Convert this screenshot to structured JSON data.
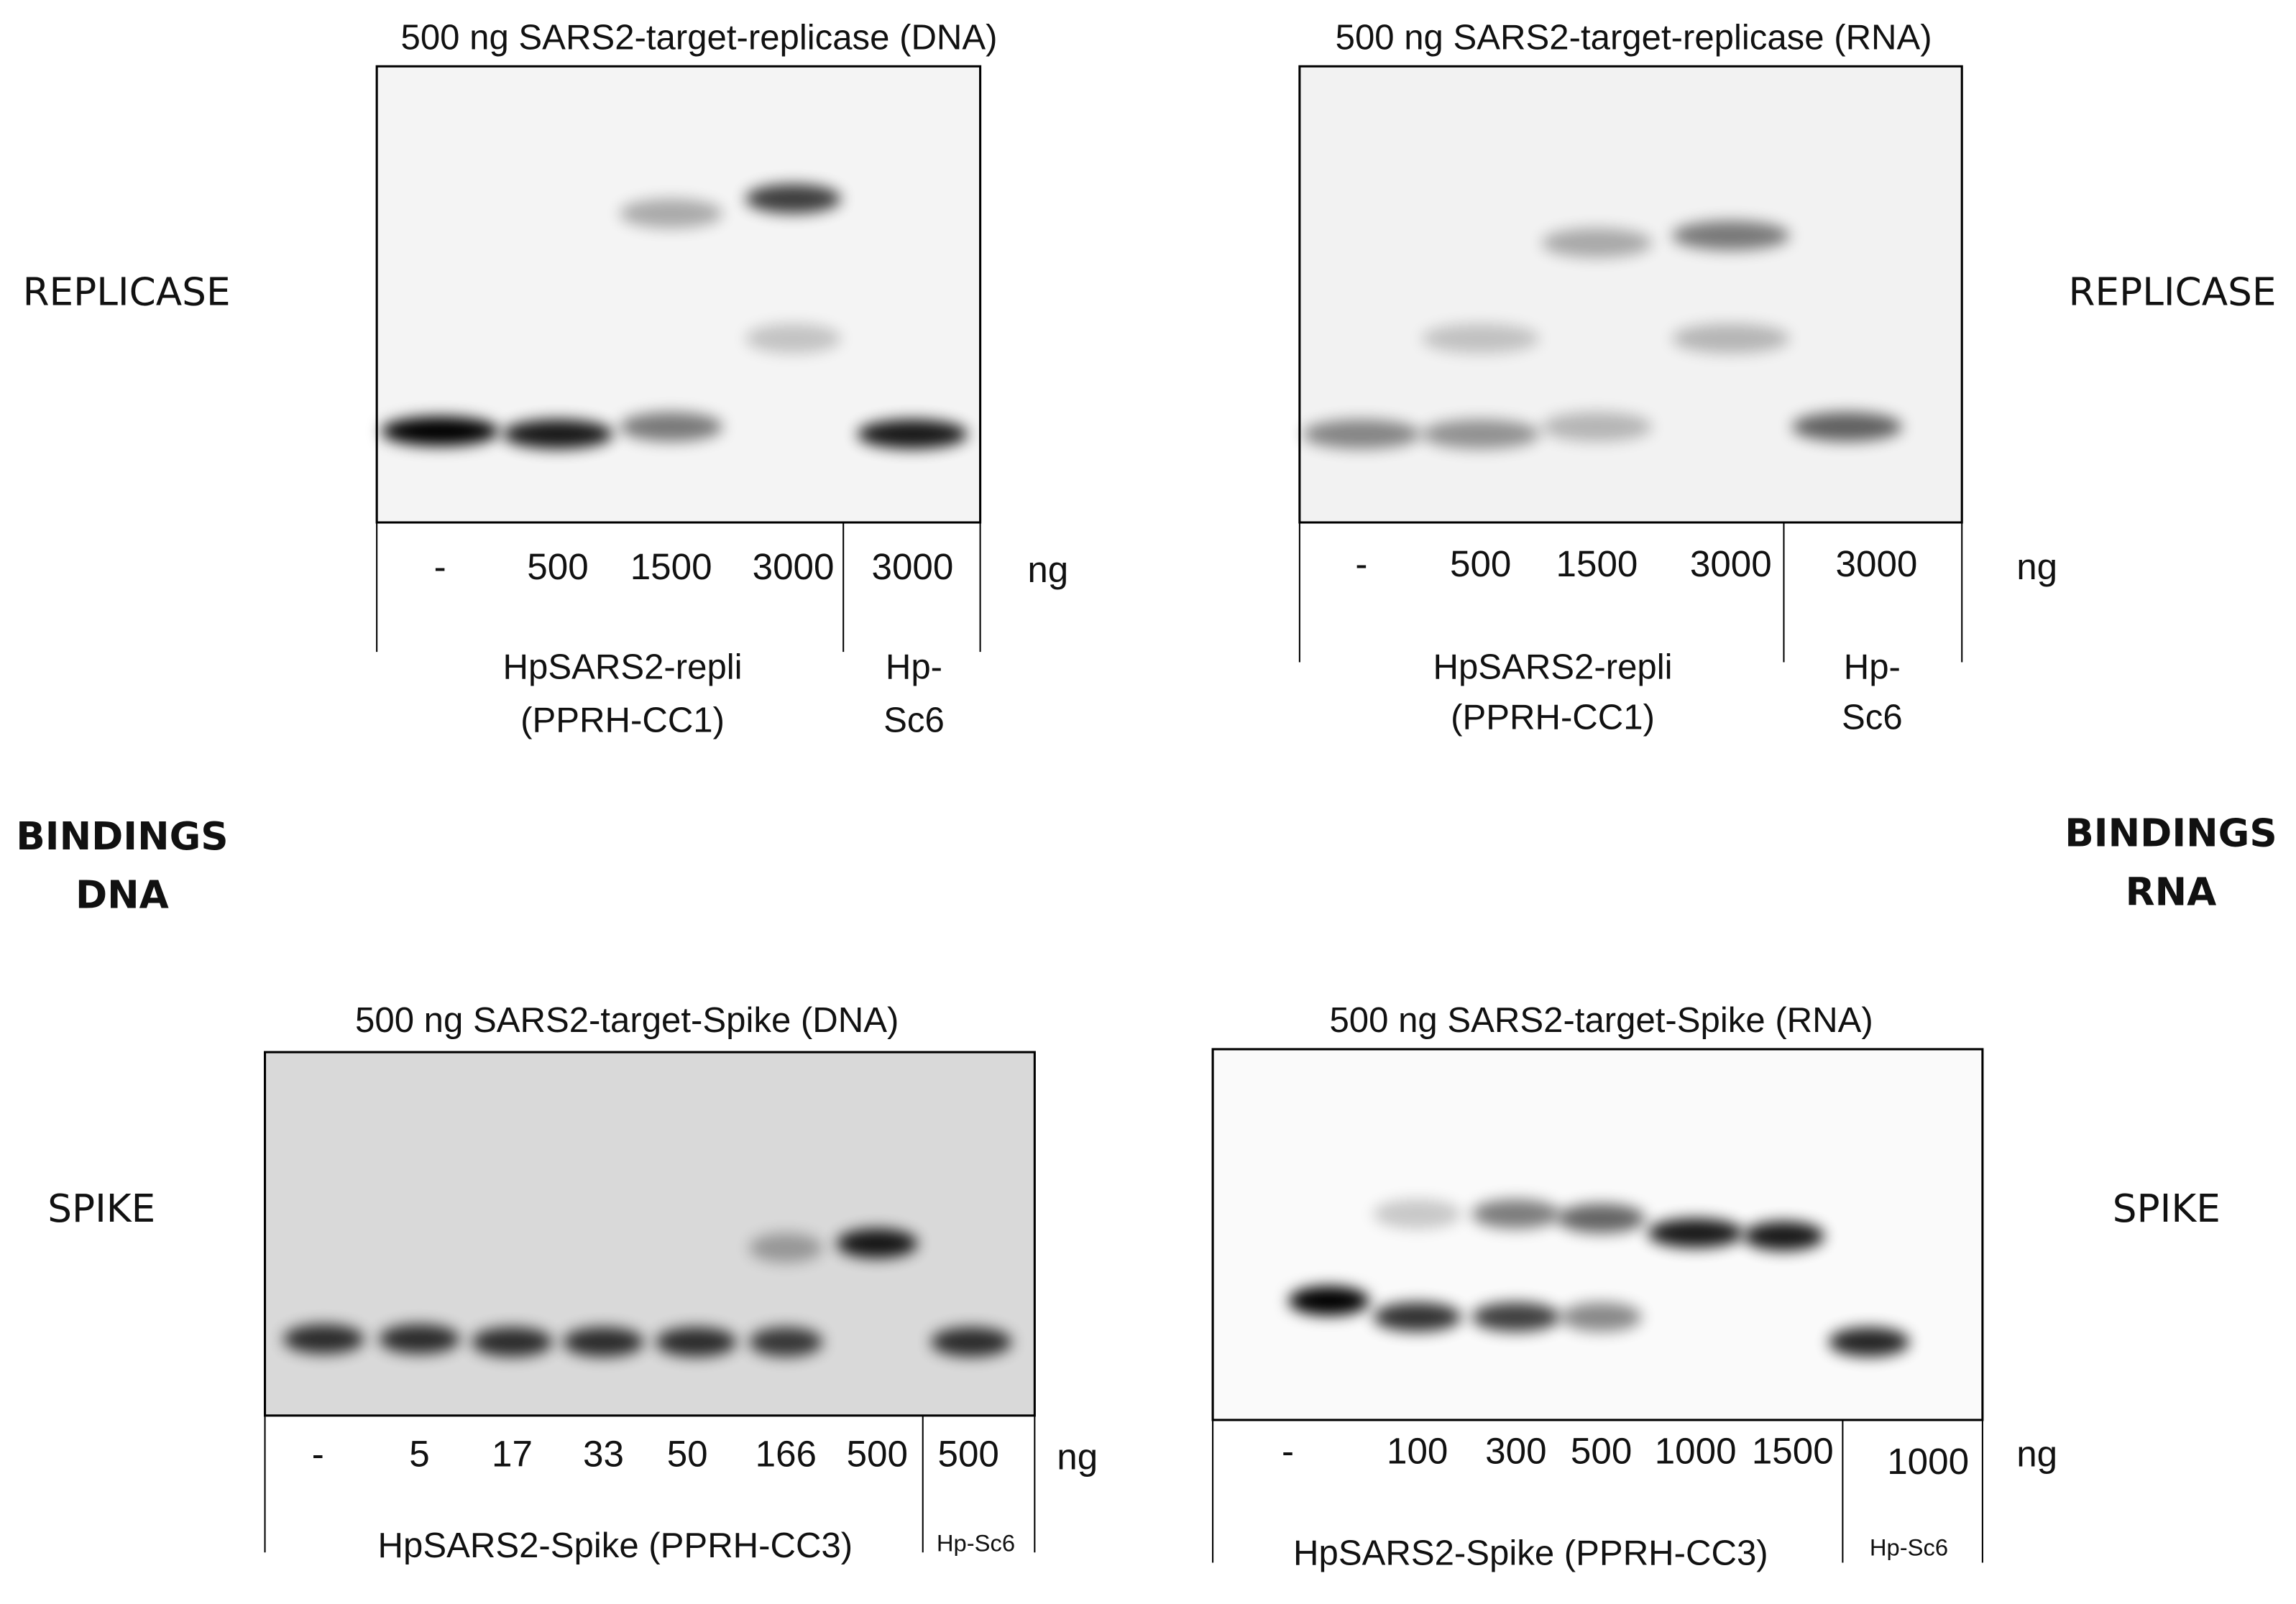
{
  "left_labels": {
    "top": "REPLICASE",
    "middle": [
      "BINDINGS",
      "DNA"
    ],
    "bottom": "SPIKE"
  },
  "right_labels": {
    "top": "REPLICASE",
    "middle": [
      "BINDINGS",
      "RNA"
    ],
    "bottom": "SPIKE"
  },
  "panels": [
    {
      "title": "500 ng SARS2-target-replicase (DNA)",
      "lanes": [
        "-",
        "500",
        "1500",
        "3000",
        "3000"
      ],
      "unit": "ng",
      "groups": [
        {
          "label": [
            "HpSARS2-repli",
            "(PPRH-CC1)"
          ]
        },
        {
          "label": [
            "Hp-",
            "Sc6"
          ]
        }
      ]
    },
    {
      "title": "500 ng SARS2-target-replicase (RNA)",
      "lanes": [
        "-",
        "500",
        "1500",
        "3000",
        "3000"
      ],
      "unit": "ng",
      "groups": [
        {
          "label": [
            "HpSARS2-repli",
            "(PPRH-CC1)"
          ]
        },
        {
          "label": [
            "Hp-",
            "Sc6"
          ]
        }
      ]
    },
    {
      "title": "500 ng SARS2-target-Spike (DNA)",
      "lanes": [
        "-",
        "5",
        "17",
        "33",
        "50",
        "166",
        "500",
        "500"
      ],
      "unit": "ng",
      "groups": [
        {
          "label": [
            "HpSARS2-Spike (PPRH-CC3)"
          ]
        },
        {
          "label": [
            "Hp-Sc6"
          ]
        }
      ]
    },
    {
      "title": "500 ng SARS2-target-Spike (RNA)",
      "lanes": [
        "-",
        "100",
        "300",
        "500",
        "1000",
        "1500",
        "1000"
      ],
      "unit": "ng",
      "groups": [
        {
          "label": [
            "HpSARS2-Spike (PPRH-CC3)"
          ]
        },
        {
          "label": [
            "Hp-Sc6"
          ]
        }
      ]
    }
  ]
}
